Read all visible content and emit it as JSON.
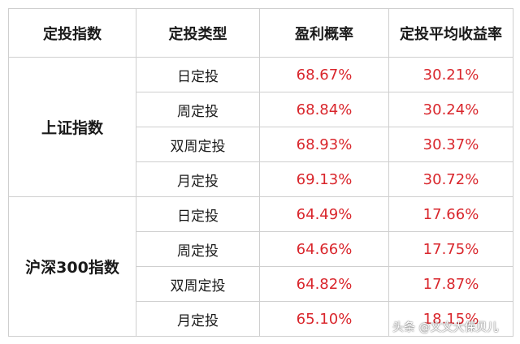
{
  "table": {
    "headers": [
      "定投指数",
      "定投类型",
      "盈利概率",
      "定投平均收益率"
    ],
    "groups": [
      {
        "index_name": "上证指数",
        "rows": [
          {
            "type": "日定投",
            "probability": "68.67%",
            "avg_return": "30.21%"
          },
          {
            "type": "周定投",
            "probability": "68.84%",
            "avg_return": "30.24%"
          },
          {
            "type": "双周定投",
            "probability": "68.93%",
            "avg_return": "30.37%"
          },
          {
            "type": "月定投",
            "probability": "69.13%",
            "avg_return": "30.72%"
          }
        ]
      },
      {
        "index_name": "沪深300指数",
        "rows": [
          {
            "type": "日定投",
            "probability": "64.49%",
            "avg_return": "17.66%"
          },
          {
            "type": "周定投",
            "probability": "64.66%",
            "avg_return": "17.75%"
          },
          {
            "type": "双周定投",
            "probability": "64.82%",
            "avg_return": "17.87%"
          },
          {
            "type": "月定投",
            "probability": "65.10%",
            "avg_return": "18.15%"
          }
        ]
      }
    ]
  },
  "watermark": "头条 @文文大保贝儿",
  "colors": {
    "percent_text": "#d9262c",
    "border": "#cfcfcf"
  }
}
